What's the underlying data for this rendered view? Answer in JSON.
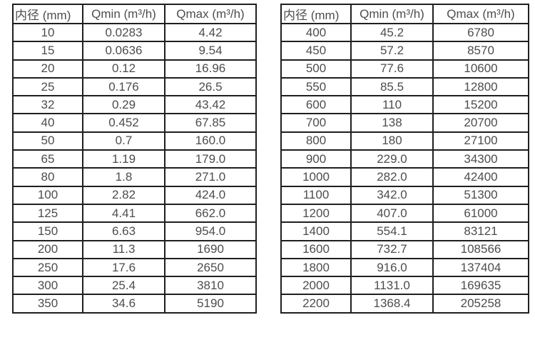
{
  "theme": {
    "bg": "#ffffff",
    "text": "#4d4d4d",
    "border": "#1f1f1f"
  },
  "tables": [
    {
      "headers": [
        "内径 (mm)",
        "Qmin (m³/h)",
        "Qmax (m³/h)"
      ],
      "rows": [
        [
          "10",
          "0.0283",
          "4.42"
        ],
        [
          "15",
          "0.0636",
          "9.54"
        ],
        [
          "20",
          "0.12",
          "16.96"
        ],
        [
          "25",
          "0.176",
          "26.5"
        ],
        [
          "32",
          "0.29",
          "43.42"
        ],
        [
          "40",
          "0.452",
          "67.85"
        ],
        [
          "50",
          "0.7",
          "160.0"
        ],
        [
          "65",
          "1.19",
          "179.0"
        ],
        [
          "80",
          "1.8",
          "271.0"
        ],
        [
          "100",
          "2.82",
          "424.0"
        ],
        [
          "125",
          "4.41",
          "662.0"
        ],
        [
          "150",
          "6.63",
          "954.0"
        ],
        [
          "200",
          "11.3",
          "1690"
        ],
        [
          "250",
          "17.6",
          "2650"
        ],
        [
          "300",
          "25.4",
          "3810"
        ],
        [
          "350",
          "34.6",
          "5190"
        ]
      ]
    },
    {
      "headers": [
        "内径 (mm)",
        "Qmin (m³/h)",
        "Qmax (m³/h)"
      ],
      "rows": [
        [
          "400",
          "45.2",
          "6780"
        ],
        [
          "450",
          "57.2",
          "8570"
        ],
        [
          "500",
          "77.6",
          "10600"
        ],
        [
          "550",
          "85.5",
          "12800"
        ],
        [
          "600",
          "110",
          "15200"
        ],
        [
          "700",
          "138",
          "20700"
        ],
        [
          "800",
          "180",
          "27100"
        ],
        [
          "900",
          "229.0",
          "34300"
        ],
        [
          "1000",
          "282.0",
          "42400"
        ],
        [
          "1100",
          "342.0",
          "51300"
        ],
        [
          "1200",
          "407.0",
          "61000"
        ],
        [
          "1400",
          "554.1",
          "83121"
        ],
        [
          "1600",
          "732.7",
          "108566"
        ],
        [
          "1800",
          "916.0",
          "137404"
        ],
        [
          "2000",
          "1131.0",
          "169635"
        ],
        [
          "2200",
          "1368.4",
          "205258"
        ]
      ]
    }
  ]
}
